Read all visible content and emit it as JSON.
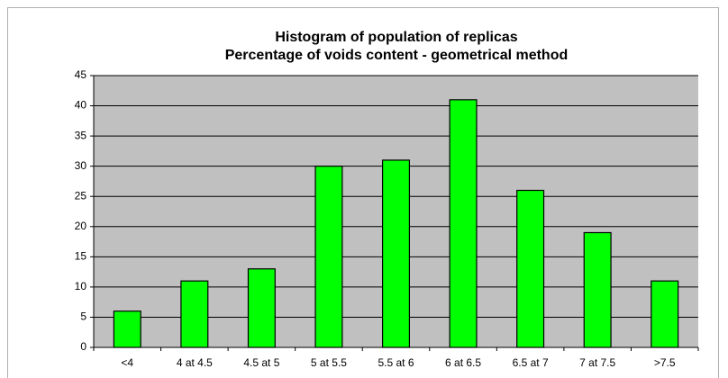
{
  "chart_data": {
    "type": "bar",
    "title": "Histogram of population of replicas",
    "subtitle": "Percentage of voids content - geometrical method",
    "categories": [
      "<4",
      "4 at 4.5",
      "4.5 at 5",
      "5 at 5.5",
      "5.5 at 6",
      "6 at 6.5",
      "6.5 at 7",
      "7 at 7.5",
      ">7.5"
    ],
    "values": [
      6,
      11,
      13,
      30,
      31,
      41,
      26,
      19,
      11
    ],
    "color": "#00ff00",
    "ylim": [
      0,
      45
    ],
    "yticks": [
      0,
      5,
      10,
      15,
      20,
      25,
      30,
      35,
      40,
      45
    ],
    "grid": true
  }
}
